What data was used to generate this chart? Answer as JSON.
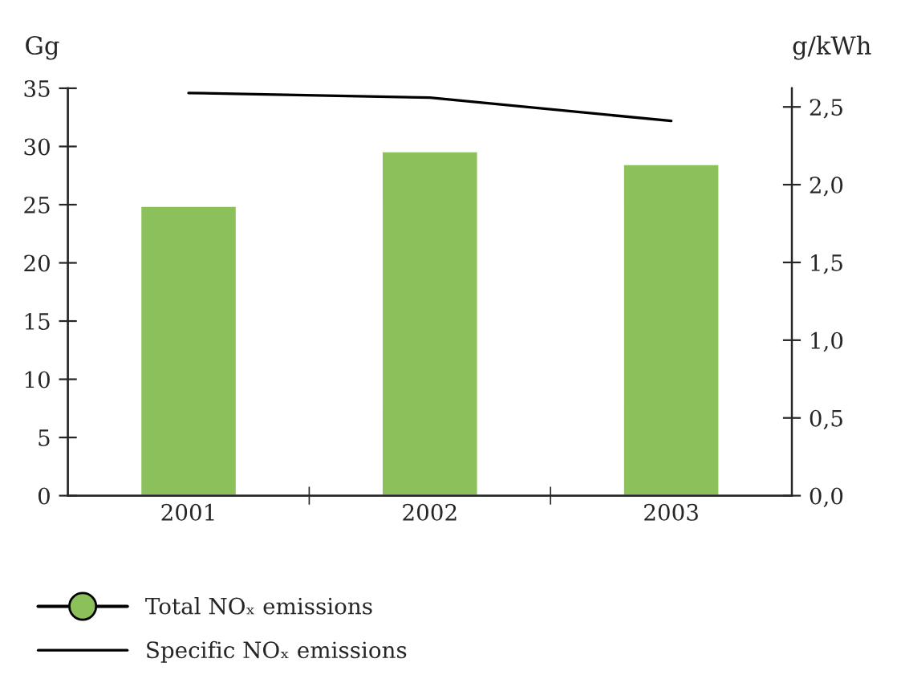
{
  "chart_data": {
    "type": "bar",
    "categories": [
      "2001",
      "2002",
      "2003"
    ],
    "ylabel": "Gg",
    "y2label": "g/kWh",
    "series": [
      {
        "name": "Total NOₓ emissions",
        "color": "#8cc05a",
        "values": [
          24.9,
          29.6,
          28.5
        ]
      },
      {
        "name": "Specific NOₓ emissions",
        "type": "line",
        "axis": "y2",
        "color": "#000000",
        "values": [
          2.59,
          2.56,
          2.41
        ]
      }
    ],
    "ylim": [
      0,
      35
    ],
    "yticks": [
      0,
      5,
      10,
      15,
      20,
      25,
      30,
      35
    ],
    "y2lim": [
      0,
      2.62
    ],
    "y2ticks": [
      {
        "value": 0,
        "label": "0,0"
      },
      {
        "value": 0.5,
        "label": "0,5"
      },
      {
        "value": 1.0,
        "label": "1,0"
      },
      {
        "value": 1.5,
        "label": "1,5"
      },
      {
        "value": 2.0,
        "label": "2,0"
      },
      {
        "value": 2.5,
        "label": "2,5"
      }
    ],
    "grid": false,
    "legend": "bottom"
  }
}
